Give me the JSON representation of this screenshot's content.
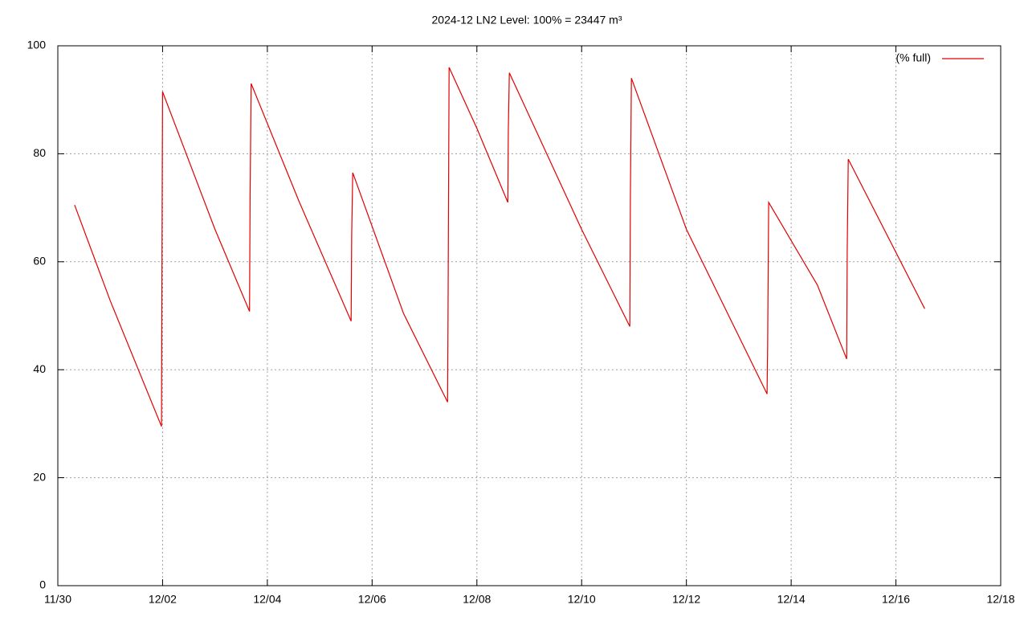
{
  "chart_data": {
    "type": "line",
    "title": "2024-12 LN2 Level: 100% = 23447 m³",
    "x": [
      0.32,
      1.0,
      1.98,
      1.99,
      2.0,
      3.0,
      3.66,
      3.67,
      3.69,
      4.6,
      5.6,
      5.61,
      5.63,
      6.6,
      7.44,
      7.45,
      7.47,
      8.0,
      8.59,
      8.6,
      8.62,
      10.0,
      10.92,
      10.93,
      10.95,
      12.0,
      13.54,
      13.55,
      13.57,
      14.5,
      15.06,
      15.07,
      15.09,
      16.55
    ],
    "series": [
      {
        "name": "(% full)",
        "color": "#e00000",
        "values": [
          70.5,
          52.8,
          29.5,
          65,
          91.5,
          66,
          50.8,
          72,
          93,
          71.3,
          49,
          65,
          76.5,
          50.4,
          34,
          51,
          96,
          84.7,
          71,
          84,
          95,
          66,
          48,
          72,
          94,
          66,
          35.5,
          44,
          71,
          55.7,
          42,
          62,
          79,
          51.3
        ]
      }
    ],
    "xlim": [
      0,
      18
    ],
    "xticks": [
      {
        "value": 0,
        "label": "11/30"
      },
      {
        "value": 2,
        "label": "12/02"
      },
      {
        "value": 4,
        "label": "12/04"
      },
      {
        "value": 6,
        "label": "12/06"
      },
      {
        "value": 8,
        "label": "12/08"
      },
      {
        "value": 10,
        "label": "12/10"
      },
      {
        "value": 12,
        "label": "12/12"
      },
      {
        "value": 14,
        "label": "12/14"
      },
      {
        "value": 16,
        "label": "12/16"
      },
      {
        "value": 18,
        "label": "12/18"
      }
    ],
    "ylim": [
      0,
      100
    ],
    "yticks": [
      0,
      20,
      40,
      60,
      80,
      100
    ],
    "grid": true,
    "legend": "top-right"
  }
}
